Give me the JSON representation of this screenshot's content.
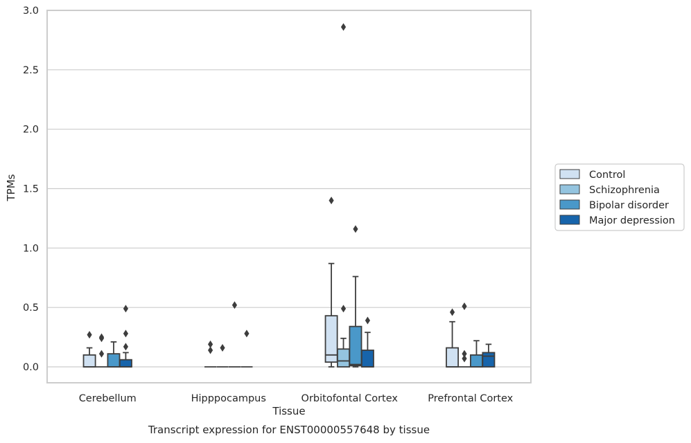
{
  "chart_data": {
    "type": "box",
    "title": "Transcript expression for ENST00000557648 by tissue",
    "xlabel": "Tissue",
    "ylabel": "TPMs",
    "ylim": [
      -0.13,
      3.0
    ],
    "yticks": [
      0.0,
      0.5,
      1.0,
      1.5,
      2.0,
      2.5,
      3.0
    ],
    "ytick_labels": [
      "0.0",
      "0.5",
      "1.0",
      "1.5",
      "2.0",
      "2.5",
      "3.0"
    ],
    "categories": [
      "Cerebellum",
      "Hipppocampus",
      "Orbitofontal Cortex",
      "Prefrontal Cortex"
    ],
    "grid": true,
    "legend_position": "right",
    "colors": [
      "#d0e1f2",
      "#94c4df",
      "#4a98c9",
      "#1764ab"
    ],
    "series": [
      {
        "name": "Control",
        "boxes": [
          {
            "q1": 0.0,
            "median": 0.0,
            "q3": 0.1,
            "whislo": 0.0,
            "whishi": 0.16,
            "fliers": [
              0.27
            ]
          },
          {
            "q1": 0.0,
            "median": 0.0,
            "q3": 0.0,
            "whislo": 0.0,
            "whishi": 0.0,
            "fliers": [
              0.14,
              0.19
            ]
          },
          {
            "q1": 0.04,
            "median": 0.1,
            "q3": 0.43,
            "whislo": 0.0,
            "whishi": 0.87,
            "fliers": [
              1.4
            ]
          },
          {
            "q1": 0.0,
            "median": 0.0,
            "q3": 0.16,
            "whislo": 0.0,
            "whishi": 0.38,
            "fliers": [
              0.46
            ]
          }
        ]
      },
      {
        "name": "Schizophrenia",
        "boxes": [
          {
            "q1": 0.0,
            "median": 0.0,
            "q3": 0.0,
            "whislo": 0.0,
            "whishi": 0.0,
            "fliers": [
              0.11,
              0.24,
              0.25
            ]
          },
          {
            "q1": 0.0,
            "median": 0.0,
            "q3": 0.0,
            "whislo": 0.0,
            "whishi": 0.0,
            "fliers": [
              0.16
            ]
          },
          {
            "q1": 0.0,
            "median": 0.05,
            "q3": 0.15,
            "whislo": 0.0,
            "whishi": 0.24,
            "fliers": [
              0.49,
              2.86
            ]
          },
          {
            "q1": 0.0,
            "median": 0.0,
            "q3": 0.0,
            "whislo": 0.0,
            "whishi": 0.0,
            "fliers": [
              0.07,
              0.11,
              0.51
            ]
          }
        ]
      },
      {
        "name": "Bipolar disorder",
        "boxes": [
          {
            "q1": 0.0,
            "median": 0.0,
            "q3": 0.11,
            "whislo": 0.0,
            "whishi": 0.21,
            "fliers": []
          },
          {
            "q1": 0.0,
            "median": 0.0,
            "q3": 0.0,
            "whislo": 0.0,
            "whishi": 0.0,
            "fliers": [
              0.52
            ]
          },
          {
            "q1": 0.01,
            "median": 0.02,
            "q3": 0.34,
            "whislo": 0.0,
            "whishi": 0.76,
            "fliers": [
              1.16
            ]
          },
          {
            "q1": 0.0,
            "median": 0.0,
            "q3": 0.1,
            "whislo": 0.0,
            "whishi": 0.22,
            "fliers": []
          }
        ]
      },
      {
        "name": "Major depression",
        "boxes": [
          {
            "q1": 0.0,
            "median": 0.0,
            "q3": 0.06,
            "whislo": 0.0,
            "whishi": 0.12,
            "fliers": [
              0.17,
              0.28,
              0.49
            ]
          },
          {
            "q1": 0.0,
            "median": 0.0,
            "q3": 0.0,
            "whislo": 0.0,
            "whishi": 0.0,
            "fliers": [
              0.28
            ]
          },
          {
            "q1": 0.0,
            "median": 0.0,
            "q3": 0.14,
            "whislo": 0.0,
            "whishi": 0.29,
            "fliers": [
              0.39
            ]
          },
          {
            "q1": 0.0,
            "median": 0.09,
            "q3": 0.12,
            "whislo": 0.0,
            "whishi": 0.19,
            "fliers": []
          }
        ]
      }
    ]
  }
}
